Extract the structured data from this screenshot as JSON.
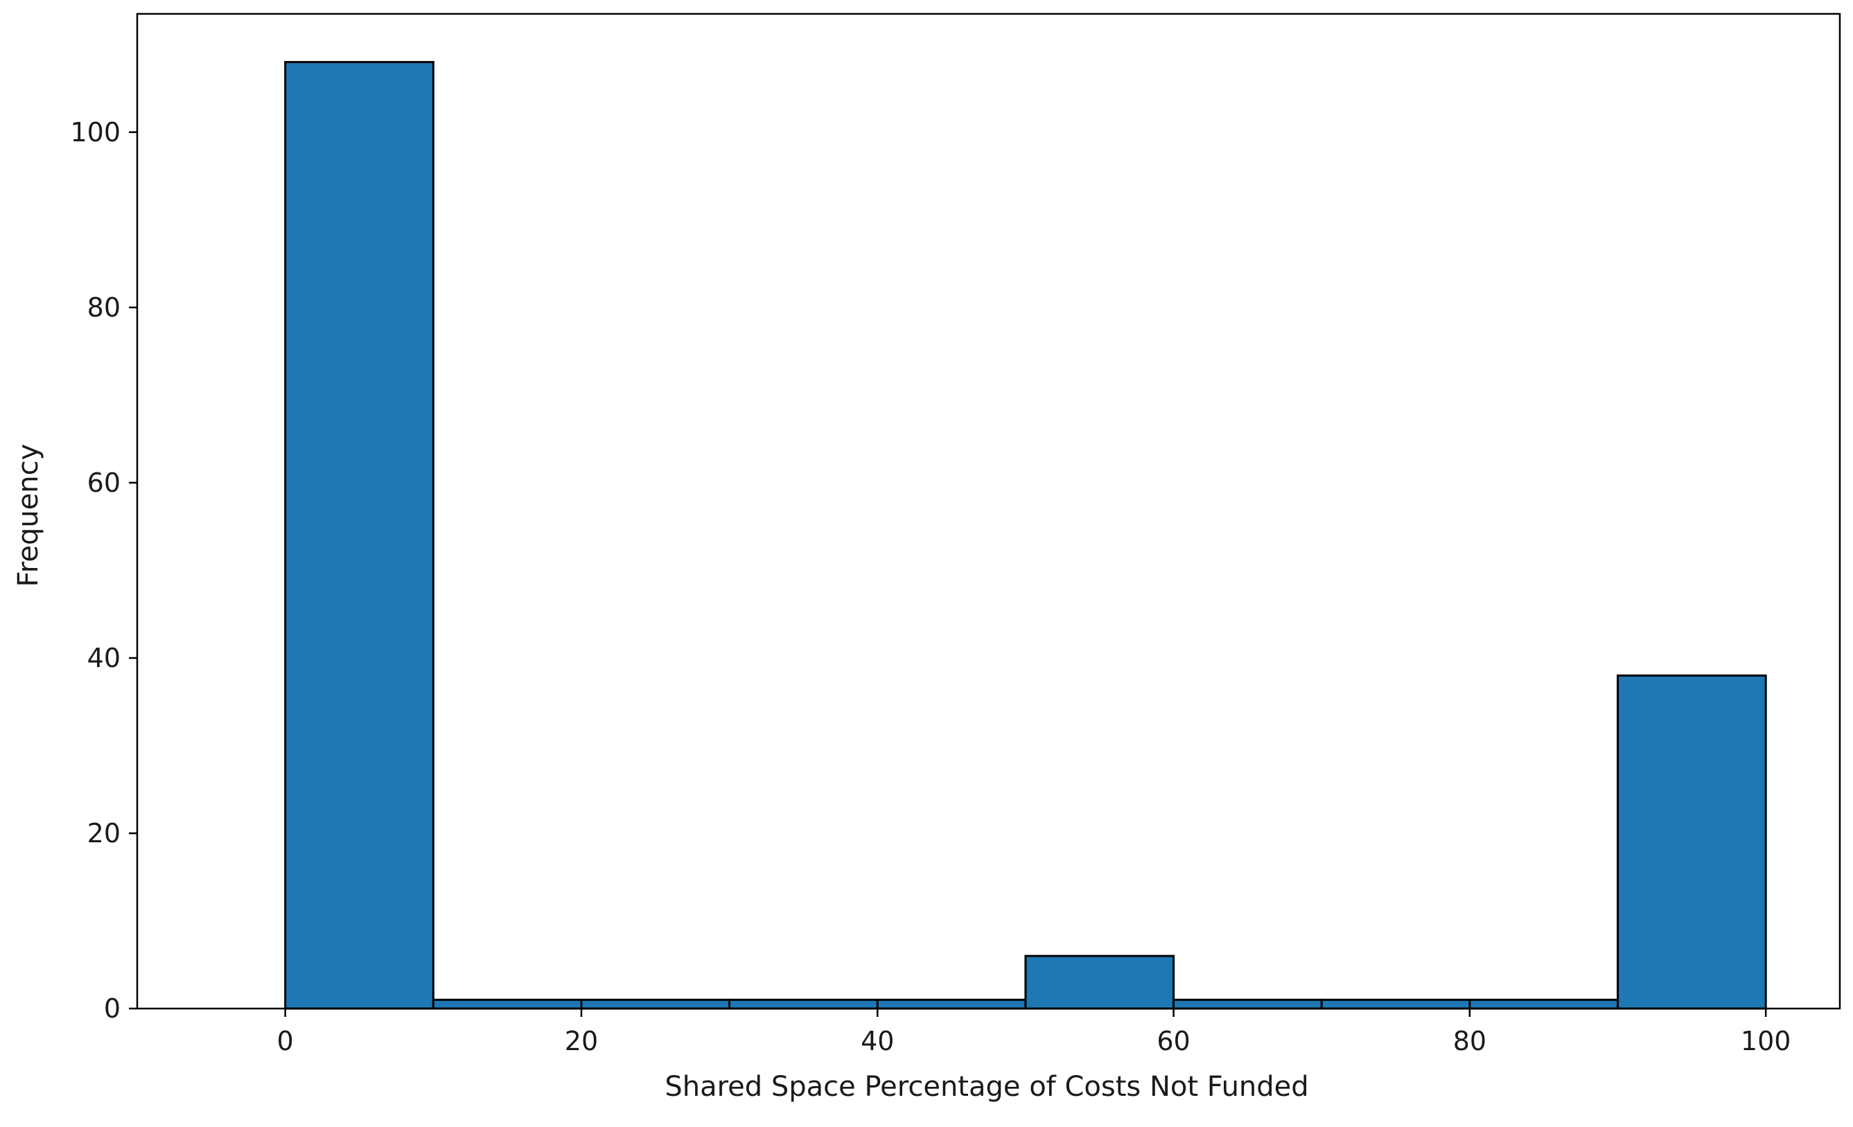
{
  "chart_data": {
    "type": "bar",
    "title": "",
    "xlabel": "Shared Space Percentage of Costs Not Funded",
    "ylabel": "Frequency",
    "bins": [
      {
        "x0": 0,
        "x1": 10,
        "value": 108
      },
      {
        "x0": 10,
        "x1": 20,
        "value": 1
      },
      {
        "x0": 20,
        "x1": 30,
        "value": 1
      },
      {
        "x0": 30,
        "x1": 40,
        "value": 1
      },
      {
        "x0": 40,
        "x1": 50,
        "value": 1
      },
      {
        "x0": 50,
        "x1": 60,
        "value": 6
      },
      {
        "x0": 60,
        "x1": 70,
        "value": 1
      },
      {
        "x0": 70,
        "x1": 80,
        "value": 1
      },
      {
        "x0": 80,
        "x1": 90,
        "value": 1
      },
      {
        "x0": 90,
        "x1": 100,
        "value": 38
      }
    ],
    "bar_edges": [
      {
        "x0": 0,
        "x1": 10,
        "value": 108
      },
      {
        "x0": 10,
        "x1": 30,
        "value": 1
      },
      {
        "x0": 30,
        "x1": 50,
        "value": 1
      },
      {
        "x0": 50,
        "x1": 60,
        "value": 6
      },
      {
        "x0": 60,
        "x1": 70,
        "value": 1
      },
      {
        "x0": 70,
        "x1": 90,
        "value": 1
      },
      {
        "x0": 90,
        "x1": 100,
        "value": 38
      }
    ],
    "xlim": [
      -10,
      105
    ],
    "ylim": [
      0,
      113.5
    ],
    "xticks": [
      0,
      20,
      40,
      60,
      80,
      100
    ],
    "yticks": [
      0,
      20,
      40,
      60,
      80,
      100
    ],
    "grid": false,
    "bar_color": "#1f77b4",
    "edge_color": "#000000"
  }
}
